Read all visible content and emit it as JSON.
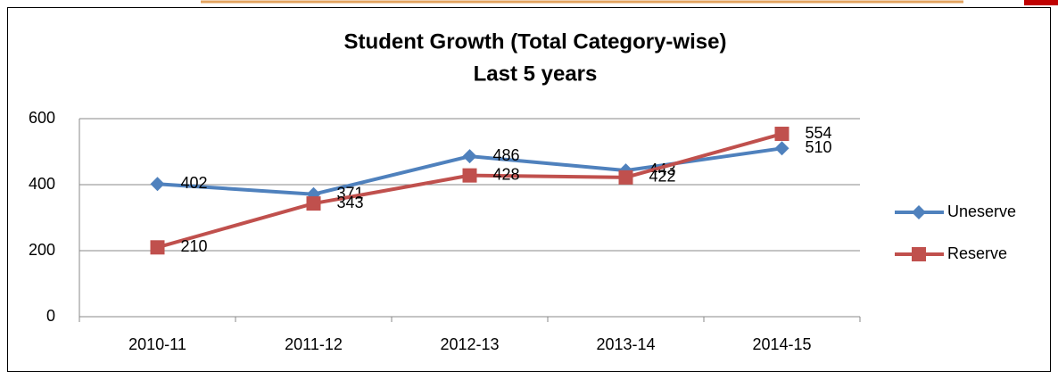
{
  "chart_data": {
    "type": "line",
    "title": "Student Growth (Total Category-wise)",
    "subtitle": "Last 5 years",
    "categories": [
      "2010-11",
      "2011-12",
      "2012-13",
      "2013-14",
      "2014-15"
    ],
    "series": [
      {
        "name": "Uneserve",
        "color": "#4f81bd",
        "marker": "diamond",
        "values": [
          402,
          371,
          486,
          443,
          510
        ]
      },
      {
        "name": "Reserve",
        "color": "#c0504d",
        "marker": "square",
        "values": [
          210,
          343,
          428,
          422,
          554
        ]
      }
    ],
    "ylim": [
      0,
      600
    ],
    "yticks": [
      0,
      200,
      400,
      600
    ],
    "grid": true,
    "legend": "right"
  }
}
